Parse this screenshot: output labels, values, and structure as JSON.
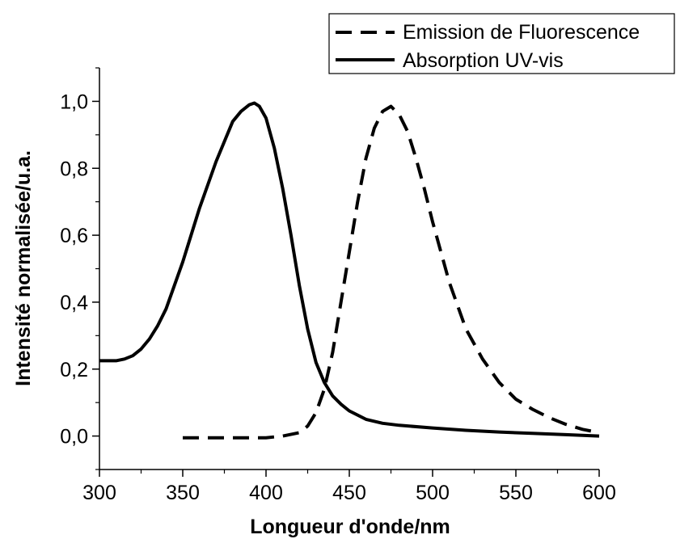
{
  "chart_data": {
    "type": "line",
    "xlabel": "Longueur d'onde/nm",
    "ylabel": "Intensité normalisée/u.a.",
    "xlim": [
      300,
      600
    ],
    "ylim": [
      -0.1,
      1.1
    ],
    "x_ticks": [
      300,
      350,
      400,
      450,
      500,
      550,
      600
    ],
    "x_tick_labels": [
      "300",
      "350",
      "400",
      "450",
      "500",
      "550",
      "600"
    ],
    "y_ticks": [
      0.0,
      0.2,
      0.4,
      0.6,
      0.8,
      1.0
    ],
    "y_tick_labels": [
      "0,0",
      "0,2",
      "0,4",
      "0,6",
      "0,8",
      "1,0"
    ],
    "grid": false,
    "legend_position": "top-right",
    "series": [
      {
        "name": "Emission de Fluorescence",
        "style": "dashed",
        "color": "#000000",
        "points": [
          [
            350,
            -0.005
          ],
          [
            380,
            -0.005
          ],
          [
            400,
            -0.005
          ],
          [
            410,
            0.0
          ],
          [
            420,
            0.01
          ],
          [
            425,
            0.03
          ],
          [
            430,
            0.07
          ],
          [
            435,
            0.14
          ],
          [
            440,
            0.25
          ],
          [
            445,
            0.4
          ],
          [
            450,
            0.55
          ],
          [
            455,
            0.7
          ],
          [
            460,
            0.83
          ],
          [
            465,
            0.92
          ],
          [
            470,
            0.97
          ],
          [
            475,
            0.985
          ],
          [
            480,
            0.96
          ],
          [
            485,
            0.91
          ],
          [
            490,
            0.83
          ],
          [
            495,
            0.74
          ],
          [
            500,
            0.64
          ],
          [
            505,
            0.55
          ],
          [
            510,
            0.46
          ],
          [
            515,
            0.39
          ],
          [
            520,
            0.32
          ],
          [
            530,
            0.23
          ],
          [
            540,
            0.16
          ],
          [
            550,
            0.11
          ],
          [
            560,
            0.08
          ],
          [
            570,
            0.055
          ],
          [
            580,
            0.035
          ],
          [
            590,
            0.02
          ],
          [
            600,
            0.01
          ]
        ]
      },
      {
        "name": "Absorption UV-vis",
        "style": "solid",
        "color": "#000000",
        "points": [
          [
            300,
            0.225
          ],
          [
            305,
            0.225
          ],
          [
            310,
            0.225
          ],
          [
            315,
            0.23
          ],
          [
            320,
            0.24
          ],
          [
            325,
            0.26
          ],
          [
            330,
            0.29
          ],
          [
            335,
            0.33
          ],
          [
            340,
            0.38
          ],
          [
            345,
            0.45
          ],
          [
            350,
            0.52
          ],
          [
            355,
            0.6
          ],
          [
            360,
            0.68
          ],
          [
            365,
            0.75
          ],
          [
            370,
            0.82
          ],
          [
            375,
            0.88
          ],
          [
            380,
            0.94
          ],
          [
            385,
            0.97
          ],
          [
            390,
            0.99
          ],
          [
            393,
            0.995
          ],
          [
            396,
            0.985
          ],
          [
            400,
            0.95
          ],
          [
            405,
            0.86
          ],
          [
            410,
            0.74
          ],
          [
            415,
            0.6
          ],
          [
            420,
            0.45
          ],
          [
            425,
            0.32
          ],
          [
            430,
            0.22
          ],
          [
            435,
            0.16
          ],
          [
            440,
            0.12
          ],
          [
            445,
            0.095
          ],
          [
            450,
            0.075
          ],
          [
            460,
            0.05
          ],
          [
            470,
            0.038
          ],
          [
            480,
            0.032
          ],
          [
            500,
            0.024
          ],
          [
            520,
            0.017
          ],
          [
            540,
            0.012
          ],
          [
            560,
            0.008
          ],
          [
            580,
            0.004
          ],
          [
            600,
            0.0
          ]
        ]
      }
    ]
  }
}
